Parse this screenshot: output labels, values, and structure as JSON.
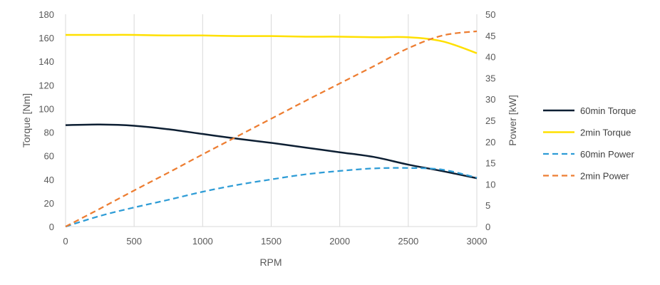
{
  "chart_data": {
    "type": "line",
    "xlabel": "RPM",
    "ylabel_left": "Torque [Nm]",
    "ylabel_right": "Power [kW]",
    "xlim": [
      0,
      3000
    ],
    "ylim_left": [
      0,
      180
    ],
    "ylim_right": [
      0,
      50
    ],
    "x_ticks": [
      0,
      500,
      1000,
      1500,
      2000,
      2500,
      3000
    ],
    "y_left_ticks": [
      0,
      20,
      40,
      60,
      80,
      100,
      120,
      140,
      160,
      180
    ],
    "y_right_ticks": [
      0,
      5,
      10,
      15,
      20,
      25,
      30,
      35,
      40,
      45,
      50
    ],
    "grid": "vertical",
    "legend_position": "right",
    "x": [
      0,
      250,
      500,
      750,
      1000,
      1250,
      1500,
      1750,
      2000,
      2250,
      2500,
      2750,
      3000
    ],
    "series": [
      {
        "name": "60min Torque",
        "axis": "left",
        "color": "#0d1f33",
        "dash": "solid",
        "values": [
          86,
          86.5,
          85.5,
          82.5,
          78.5,
          74.5,
          71,
          67,
          63,
          59,
          52.5,
          47,
          41
        ]
      },
      {
        "name": "2min Torque",
        "axis": "left",
        "color": "#ffe000",
        "dash": "solid",
        "values": [
          162.5,
          162.5,
          162.5,
          162,
          162,
          161.5,
          161.5,
          161,
          161,
          160.5,
          160.5,
          157,
          147
        ]
      },
      {
        "name": "60min Power",
        "axis": "right",
        "color": "#2e9cd6",
        "dash": "dashed",
        "values": [
          0,
          2.5,
          4.5,
          6.3,
          8.2,
          9.8,
          11.1,
          12.3,
          13.1,
          13.7,
          13.8,
          13.4,
          11.5
        ]
      },
      {
        "name": "2min Power",
        "axis": "right",
        "color": "#ed7d31",
        "dash": "dashed",
        "values": [
          0,
          4.2,
          8.5,
          12.7,
          17,
          21.2,
          25.4,
          29.6,
          33.7,
          37.8,
          42,
          45,
          46
        ]
      }
    ]
  }
}
